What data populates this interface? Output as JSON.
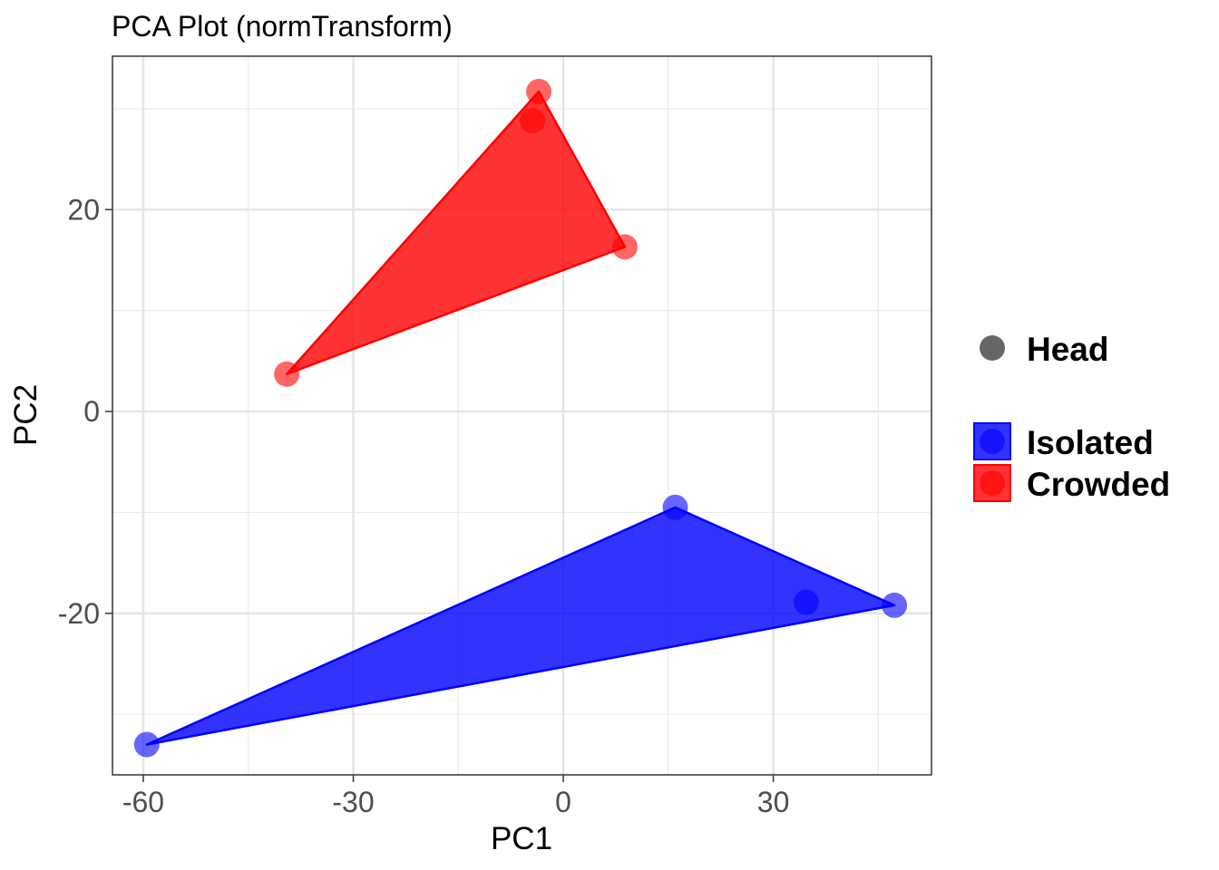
{
  "chart_data": {
    "type": "scatter",
    "title": "PCA Plot (normTransform)",
    "xlabel": "PC1",
    "ylabel": "PC2",
    "xlim": [
      -64.4,
      52.6
    ],
    "ylim": [
      -36.0,
      35.2
    ],
    "x_ticks": [
      -60,
      -30,
      0,
      30
    ],
    "y_ticks": [
      -20,
      0,
      20
    ],
    "x_tick_labels": [
      "-60",
      "-30",
      "0",
      "30"
    ],
    "y_tick_labels": [
      "-20",
      "0",
      "20"
    ],
    "grid": true,
    "legend_position": "right",
    "shape_legend": {
      "label": "Head",
      "color": "#666666"
    },
    "series": [
      {
        "name": "Isolated",
        "color": "#0000ff",
        "points": [
          {
            "x": -59.5,
            "y": -33.0
          },
          {
            "x": 16.0,
            "y": -9.5
          },
          {
            "x": 34.7,
            "y": -18.9
          },
          {
            "x": 47.3,
            "y": -19.2
          }
        ],
        "hull": [
          [
            -59.5,
            -33.0
          ],
          [
            16.0,
            -9.5
          ],
          [
            47.3,
            -19.2
          ]
        ]
      },
      {
        "name": "Crowded",
        "color": "#ff0000",
        "points": [
          {
            "x": -39.5,
            "y": 3.7
          },
          {
            "x": -4.4,
            "y": 28.8
          },
          {
            "x": -3.5,
            "y": 31.7
          },
          {
            "x": 8.8,
            "y": 16.3
          }
        ],
        "hull": [
          [
            -39.5,
            3.7
          ],
          [
            -3.5,
            31.7
          ],
          [
            8.8,
            16.3
          ]
        ]
      }
    ]
  }
}
